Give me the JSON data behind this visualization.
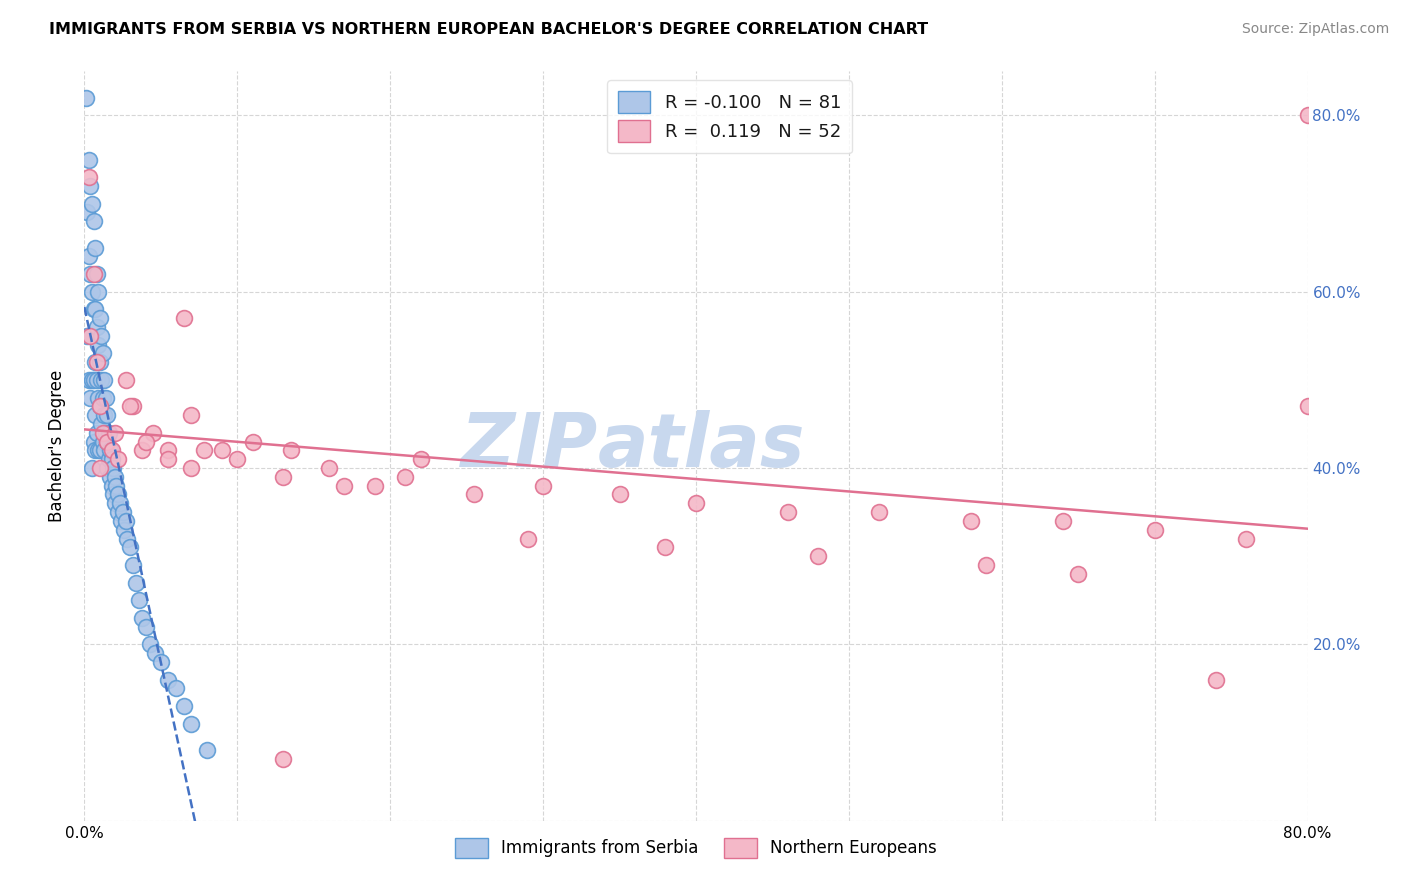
{
  "title": "IMMIGRANTS FROM SERBIA VS NORTHERN EUROPEAN BACHELOR'S DEGREE CORRELATION CHART",
  "source": "Source: ZipAtlas.com",
  "ylabel": "Bachelor's Degree",
  "xlim": [
    0.0,
    0.8
  ],
  "ylim": [
    0.0,
    0.85
  ],
  "serbia_R": -0.1,
  "serbia_N": 81,
  "northern_R": 0.119,
  "northern_N": 52,
  "serbia_color": "#aec6e8",
  "serbia_edge_color": "#5b9bd5",
  "northern_color": "#f4b8c8",
  "northern_edge_color": "#e07090",
  "serbia_line_color": "#4472c4",
  "northern_line_color": "#e07090",
  "watermark_color": "#cddcf0",
  "serbia_x": [
    0.001,
    0.002,
    0.002,
    0.003,
    0.003,
    0.003,
    0.004,
    0.004,
    0.004,
    0.005,
    0.005,
    0.005,
    0.005,
    0.006,
    0.006,
    0.006,
    0.006,
    0.007,
    0.007,
    0.007,
    0.007,
    0.007,
    0.008,
    0.008,
    0.008,
    0.008,
    0.009,
    0.009,
    0.009,
    0.009,
    0.01,
    0.01,
    0.01,
    0.01,
    0.011,
    0.011,
    0.011,
    0.012,
    0.012,
    0.012,
    0.013,
    0.013,
    0.013,
    0.014,
    0.014,
    0.015,
    0.015,
    0.015,
    0.016,
    0.016,
    0.017,
    0.017,
    0.018,
    0.018,
    0.019,
    0.019,
    0.02,
    0.02,
    0.021,
    0.022,
    0.022,
    0.023,
    0.024,
    0.025,
    0.026,
    0.027,
    0.028,
    0.03,
    0.032,
    0.034,
    0.036,
    0.038,
    0.04,
    0.043,
    0.046,
    0.05,
    0.055,
    0.06,
    0.065,
    0.07,
    0.08
  ],
  "serbia_y": [
    0.82,
    0.69,
    0.55,
    0.75,
    0.64,
    0.5,
    0.72,
    0.62,
    0.48,
    0.7,
    0.6,
    0.5,
    0.4,
    0.68,
    0.58,
    0.5,
    0.43,
    0.65,
    0.58,
    0.52,
    0.46,
    0.42,
    0.62,
    0.56,
    0.5,
    0.44,
    0.6,
    0.54,
    0.48,
    0.42,
    0.57,
    0.52,
    0.47,
    0.42,
    0.55,
    0.5,
    0.45,
    0.53,
    0.48,
    0.43,
    0.5,
    0.46,
    0.42,
    0.48,
    0.44,
    0.46,
    0.43,
    0.4,
    0.44,
    0.41,
    0.42,
    0.39,
    0.41,
    0.38,
    0.4,
    0.37,
    0.39,
    0.36,
    0.38,
    0.37,
    0.35,
    0.36,
    0.34,
    0.35,
    0.33,
    0.34,
    0.32,
    0.31,
    0.29,
    0.27,
    0.25,
    0.23,
    0.22,
    0.2,
    0.19,
    0.18,
    0.16,
    0.15,
    0.13,
    0.11,
    0.08
  ],
  "northern_x": [
    0.003,
    0.004,
    0.006,
    0.008,
    0.01,
    0.012,
    0.015,
    0.018,
    0.022,
    0.027,
    0.032,
    0.038,
    0.045,
    0.055,
    0.065,
    0.078,
    0.01,
    0.02,
    0.03,
    0.04,
    0.055,
    0.07,
    0.09,
    0.11,
    0.135,
    0.16,
    0.19,
    0.22,
    0.07,
    0.1,
    0.13,
    0.17,
    0.21,
    0.255,
    0.3,
    0.35,
    0.4,
    0.46,
    0.52,
    0.58,
    0.64,
    0.7,
    0.76,
    0.8,
    0.29,
    0.38,
    0.48,
    0.59,
    0.65,
    0.74,
    0.13,
    0.8
  ],
  "northern_y": [
    0.73,
    0.55,
    0.62,
    0.52,
    0.47,
    0.44,
    0.43,
    0.42,
    0.41,
    0.5,
    0.47,
    0.42,
    0.44,
    0.42,
    0.57,
    0.42,
    0.4,
    0.44,
    0.47,
    0.43,
    0.41,
    0.46,
    0.42,
    0.43,
    0.42,
    0.4,
    0.38,
    0.41,
    0.4,
    0.41,
    0.39,
    0.38,
    0.39,
    0.37,
    0.38,
    0.37,
    0.36,
    0.35,
    0.35,
    0.34,
    0.34,
    0.33,
    0.32,
    0.47,
    0.32,
    0.31,
    0.3,
    0.29,
    0.28,
    0.16,
    0.07,
    0.8
  ]
}
